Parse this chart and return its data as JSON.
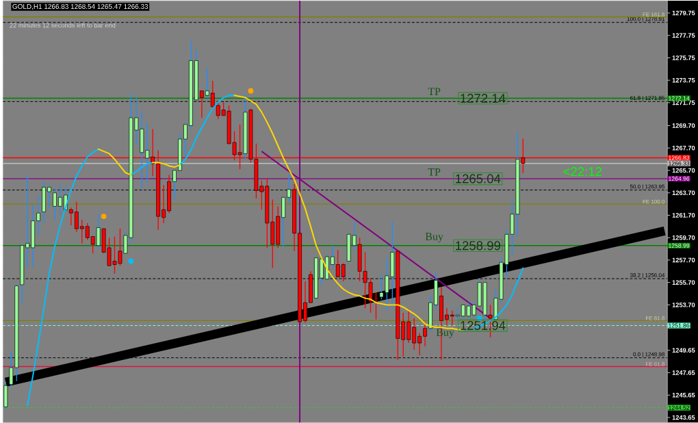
{
  "chart_data": {
    "type": "candlestick",
    "title": "GOLD,H1  1266.83 1268.54 1265.47 1266.33",
    "tick_labels": "y",
    "ylim": [
      1243.2,
      1280.85
    ],
    "yticks": [
      {
        "value": 1279.75,
        "label": "1279.75"
      },
      {
        "value": 1277.75,
        "label": "1277.75"
      },
      {
        "value": 1275.75,
        "label": "1275.75"
      },
      {
        "value": 1273.75,
        "label": "1273.75"
      },
      {
        "value": 1271.75,
        "label": "1271.75"
      },
      {
        "value": 1269.7,
        "label": "1269.70"
      },
      {
        "value": 1267.7,
        "label": "1267.70"
      },
      {
        "value": 1265.7,
        "label": "1265.70"
      },
      {
        "value": 1263.7,
        "label": "1263.70"
      },
      {
        "value": 1261.7,
        "label": "1261.70"
      },
      {
        "value": 1259.7,
        "label": "1259.70"
      },
      {
        "value": 1257.7,
        "label": "1257.70"
      },
      {
        "value": 1255.7,
        "label": "1255.70"
      },
      {
        "value": 1253.7,
        "label": "1253.70"
      },
      {
        "value": 1249.65,
        "label": "1249.65"
      },
      {
        "value": 1247.65,
        "label": "1247.65"
      },
      {
        "value": 1245.65,
        "label": "1245.65"
      },
      {
        "value": 1243.65,
        "label": "1243.65"
      }
    ],
    "categories": [
      null,
      null,
      null,
      null,
      null,
      null,
      null,
      null,
      null,
      null,
      null,
      null,
      null,
      null,
      null,
      null,
      null,
      null,
      null,
      null,
      null,
      null,
      null,
      null,
      null,
      null,
      null,
      null,
      null,
      null,
      null,
      null,
      null,
      null,
      null,
      null,
      null,
      null,
      null,
      null,
      null,
      null,
      null,
      null,
      null,
      null,
      null,
      null,
      null,
      null,
      null,
      null,
      null,
      null,
      null,
      null,
      null,
      null,
      null,
      null,
      null,
      null,
      null,
      null,
      null,
      null,
      null,
      null,
      null,
      null,
      null,
      null,
      null,
      null,
      null,
      null,
      null,
      null,
      null,
      null,
      null,
      null,
      null,
      null,
      null,
      null,
      null,
      null,
      null,
      null,
      null,
      null,
      null,
      null,
      null,
      null,
      null,
      null,
      null,
      null,
      null,
      null,
      null,
      null,
      null,
      null,
      null,
      null,
      null,
      null,
      null,
      null,
      null,
      null,
      null,
      null,
      null,
      null,
      null,
      null,
      null,
      null
    ],
    "ohlc": [
      [
        1244.6,
        1246.8,
        1244.4,
        1246.5
      ],
      [
        1246.6,
        1249.5,
        1246.4,
        1248.1
      ],
      [
        1248.1,
        1255.5,
        1246.9,
        1255.4
      ],
      [
        1255.5,
        1259.0,
        1253.9,
        1259.0
      ],
      [
        1258.8,
        1265.3,
        1257.0,
        1259.2
      ],
      [
        1258.8,
        1262.6,
        1257.1,
        1261.2
      ],
      [
        1261.2,
        1263.5,
        1259.9,
        1261.9
      ],
      [
        1262.0,
        1264.7,
        1261.0,
        1264.2
      ],
      [
        1263.8,
        1264.4,
        1262.3,
        1264.2
      ],
      [
        1262.5,
        1264.1,
        1261.2,
        1263.7
      ],
      [
        1262.5,
        1264.4,
        1261.7,
        1263.3
      ],
      [
        1262.2,
        1264.2,
        1262.0,
        1263.5
      ],
      [
        1262.2,
        1262.4,
        1260.8,
        1261.9
      ],
      [
        1262.0,
        1262.9,
        1260.2,
        1260.5
      ],
      [
        1260.7,
        1261.3,
        1259.2,
        1260.5
      ],
      [
        1260.7,
        1261.0,
        1259.5,
        1259.7
      ],
      [
        1259.8,
        1259.8,
        1258.3,
        1259.1
      ],
      [
        1259.0,
        1261.8,
        1258.7,
        1260.6
      ],
      [
        1260.5,
        1260.5,
        1258.3,
        1258.4
      ],
      [
        1258.8,
        1259.7,
        1257.2,
        1257.2
      ],
      [
        1257.6,
        1259.8,
        1256.5,
        1257.3
      ],
      [
        1258.5,
        1260.5,
        1257.2,
        1257.4
      ],
      [
        1258.3,
        1260.2,
        1258.3,
        1259.9
      ],
      [
        1259.7,
        1272.5,
        1259.2,
        1270.4
      ],
      [
        1269.3,
        1272.2,
        1268.0,
        1270.4
      ],
      [
        1267.3,
        1271.0,
        1264.1,
        1269.4
      ],
      [
        1266.8,
        1270.0,
        1264.6,
        1267.5
      ],
      [
        1266.9,
        1269.4,
        1265.2,
        1266.3
      ],
      [
        1266.3,
        1267.5,
        1260.4,
        1261.6
      ],
      [
        1262.2,
        1264.4,
        1261.0,
        1261.5
      ],
      [
        1264.7,
        1265.3,
        1261.9,
        1262.1
      ],
      [
        1264.7,
        1265.7,
        1263.1,
        1265.7
      ],
      [
        1265.7,
        1269.0,
        1265.7,
        1268.5
      ],
      [
        1268.5,
        1269.8,
        1266.9,
        1269.8
      ],
      [
        1269.7,
        1277.3,
        1269.4,
        1275.5
      ],
      [
        1272.0,
        1276.5,
        1272.0,
        1275.5
      ],
      [
        1272.8,
        1272.8,
        1270.4,
        1272.2
      ],
      [
        1272.4,
        1274.9,
        1272.2,
        1272.8
      ],
      [
        1272.6,
        1273.7,
        1271.1,
        1271.4
      ],
      [
        1271.5,
        1271.8,
        1270.3,
        1270.6
      ],
      [
        1271.1,
        1271.8,
        1270.6,
        1270.6
      ],
      [
        1271.0,
        1271.5,
        1268.0,
        1268.1
      ],
      [
        1268.2,
        1269.2,
        1266.6,
        1267.1
      ],
      [
        1267.3,
        1269.8,
        1265.8,
        1267.1
      ],
      [
        1267.2,
        1272.5,
        1266.7,
        1270.9
      ],
      [
        1271.1,
        1271.2,
        1266.4,
        1266.7
      ],
      [
        1266.7,
        1268.1,
        1263.2,
        1263.9
      ],
      [
        1264.3,
        1264.8,
        1262.2,
        1263.8
      ],
      [
        1264.3,
        1265.0,
        1258.8,
        1261.0
      ],
      [
        1261.1,
        1263.1,
        1257.0,
        1259.1
      ],
      [
        1261.6,
        1262.5,
        1258.8,
        1259.1
      ],
      [
        1261.5,
        1263.3,
        1258.9,
        1263.3
      ],
      [
        1263.3,
        1265.4,
        1262.8,
        1264.0
      ],
      [
        1264.0,
        1264.5,
        1258.5,
        1260.1
      ],
      [
        1260.1,
        1260.1,
        1252.2,
        1252.2
      ],
      [
        1253.9,
        1255.8,
        1252.1,
        1252.3
      ],
      [
        1256.4,
        1256.7,
        1253.9,
        1253.9
      ],
      [
        1254.3,
        1257.9,
        1254.2,
        1257.9
      ],
      [
        1256.1,
        1258.2,
        1255.5,
        1257.8
      ],
      [
        1256.0,
        1258.2,
        1255.9,
        1258.0
      ],
      [
        1257.3,
        1259.0,
        1257.0,
        1258.0
      ],
      [
        1257.3,
        1258.6,
        1256.2,
        1256.2
      ],
      [
        1257.3,
        1257.4,
        1255.8,
        1256.2
      ],
      [
        1257.6,
        1260.0,
        1257.6,
        1260.0
      ],
      [
        1259.0,
        1261.1,
        1258.6,
        1259.9
      ],
      [
        1259.1,
        1259.7,
        1255.8,
        1256.7
      ],
      [
        1256.7,
        1258.4,
        1253.4,
        1255.7
      ],
      [
        1255.7,
        1256.1,
        1253.0,
        1254.0
      ],
      [
        1254.3,
        1254.8,
        1252.4,
        1254.2
      ],
      [
        1254.4,
        1256.4,
        1254.2,
        1254.8
      ],
      [
        1254.8,
        1257.9,
        1253.2,
        1256.3
      ],
      [
        1256.2,
        1261.2,
        1253.4,
        1258.4
      ],
      [
        1258.5,
        1258.5,
        1248.8,
        1250.7
      ],
      [
        1252.2,
        1253.0,
        1249.1,
        1250.6
      ],
      [
        1252.2,
        1253.3,
        1250.3,
        1250.6
      ],
      [
        1251.7,
        1252.5,
        1249.7,
        1250.3
      ],
      [
        1250.9,
        1251.2,
        1249.2,
        1250.3
      ],
      [
        1251.6,
        1252.1,
        1250.0,
        1250.9
      ],
      [
        1251.6,
        1254.5,
        1251.3,
        1253.9
      ],
      [
        1253.7,
        1256.6,
        1253.3,
        1255.9
      ],
      [
        1254.5,
        1255.3,
        1248.8,
        1252.3
      ],
      [
        1252.8,
        1253.4,
        1251.9,
        1252.4
      ],
      [
        1252.8,
        1253.2,
        1251.9,
        1252.7
      ],
      [
        1252.7,
        1253.5,
        1252.2,
        1252.8
      ],
      [
        1252.7,
        1253.7,
        1252.5,
        1253.7
      ],
      [
        1252.7,
        1253.9,
        1252.4,
        1253.6
      ],
      [
        1252.8,
        1254.0,
        1252.6,
        1253.7
      ],
      [
        1253.6,
        1255.9,
        1253.6,
        1255.7
      ],
      [
        1252.8,
        1255.7,
        1252.2,
        1255.7
      ],
      [
        1252.8,
        1253.7,
        1250.8,
        1252.5
      ],
      [
        1252.4,
        1255.1,
        1252.3,
        1254.3
      ],
      [
        1254.2,
        1257.9,
        1253.9,
        1257.5
      ],
      [
        1257.3,
        1260.4,
        1256.2,
        1260.0
      ],
      [
        1260.0,
        1263.1,
        1258.2,
        1261.8
      ],
      [
        1261.8,
        1269.1,
        1259.8,
        1266.7
      ],
      [
        1266.83,
        1268.54,
        1265.47,
        1266.33
      ],
      null,
      null,
      null,
      null,
      null,
      null,
      null,
      null,
      null,
      null,
      null,
      null,
      null,
      null,
      null,
      null,
      null,
      null,
      null,
      null,
      null,
      null,
      null,
      null,
      null,
      null
    ],
    "series": [
      {
        "type": "line",
        "color": "#00bfff",
        "values": [
          null,
          null,
          null,
          null,
          1244.7,
          1247.4,
          1250.3,
          1253.4,
          1256.5,
          1258.9,
          1260.8,
          1262.4,
          1263.9,
          1265.2,
          1266.1,
          1266.9,
          1267.3,
          1267.6,
          null,
          null,
          null,
          null,
          null,
          1265.3,
          1265.6,
          1266.0,
          1266.3,
          1266.4,
          null,
          null,
          null,
          null,
          1266.2,
          1266.7,
          1267.5,
          1268.6,
          1269.5,
          1270.4,
          1271.2,
          1271.8,
          1272.2,
          1272.4,
          1272.4,
          null,
          null,
          null,
          null,
          null,
          null,
          null,
          null,
          null,
          null,
          null,
          null,
          null,
          null,
          null,
          null,
          null,
          null,
          null,
          null,
          null,
          null,
          null,
          null,
          null,
          null,
          null,
          null,
          null,
          null,
          null,
          null,
          null,
          null,
          null,
          null,
          null,
          null,
          null,
          null,
          null,
          null,
          null,
          1251.6,
          1251.8,
          1252.0,
          1252.3,
          1252.6,
          1253.1,
          1253.7,
          1254.6,
          1255.8,
          1257.0,
          null,
          null,
          null,
          null,
          null,
          null,
          null,
          null,
          null,
          null,
          null,
          null,
          null,
          null,
          null,
          null,
          null,
          null,
          null,
          null,
          null,
          null,
          null,
          null,
          null,
          null
        ]
      },
      {
        "type": "line",
        "color": "#ffd700",
        "values": [
          null,
          null,
          null,
          null,
          null,
          null,
          null,
          null,
          null,
          null,
          null,
          null,
          null,
          null,
          null,
          null,
          null,
          1267.6,
          1267.4,
          1267.2,
          1266.7,
          1266.1,
          1265.5,
          1265.3,
          null,
          null,
          null,
          1266.4,
          1266.4,
          1266.3,
          1266.1,
          1266.0,
          1266.2,
          null,
          null,
          null,
          null,
          null,
          null,
          null,
          null,
          null,
          1272.4,
          1272.3,
          1272.2,
          1271.9,
          1271.6,
          1270.9,
          1270.0,
          1269.0,
          1267.9,
          1266.8,
          1265.8,
          1264.9,
          1263.6,
          1262.3,
          1260.7,
          1259.0,
          1257.9,
          1256.9,
          1256.2,
          1255.6,
          1255.1,
          1254.8,
          1254.6,
          1254.5,
          1254.3,
          1254.2,
          1253.9,
          1253.8,
          1253.7,
          1253.7,
          1253.7,
          1253.5,
          1253.2,
          1252.9,
          1252.5,
          1252.0,
          1251.8,
          1251.7,
          1251.7,
          1251.6,
          1251.6,
          1251.5,
          1251.5,
          null,
          null,
          null,
          null,
          null,
          null,
          null,
          null,
          null,
          null,
          null,
          null,
          null,
          null,
          null,
          null,
          null,
          null,
          null,
          null,
          null,
          null,
          null,
          null,
          null,
          null,
          null,
          null,
          null,
          null,
          null,
          null,
          null,
          null,
          null,
          null,
          null
        ]
      },
      {
        "type": "line",
        "color": "#000000",
        "values": [
          1246.8,
          null,
          null,
          null,
          null,
          null,
          null,
          null,
          null,
          null,
          null,
          null,
          null,
          null,
          null,
          null,
          null,
          null,
          null,
          null,
          null,
          null,
          null,
          null,
          null,
          null,
          null,
          null,
          null,
          null,
          null,
          null,
          null,
          null,
          null,
          null,
          null,
          null,
          null,
          null,
          null,
          null,
          null,
          null,
          null,
          null,
          null,
          null,
          null,
          null,
          null,
          null,
          null,
          null,
          null,
          null,
          null,
          null,
          null,
          null,
          null,
          null,
          null,
          null,
          null,
          null,
          null,
          null,
          null,
          null,
          null,
          null,
          null,
          null,
          null,
          null,
          null,
          null,
          null,
          null,
          null,
          null,
          null,
          null,
          null,
          null,
          null,
          null,
          null,
          null,
          null,
          null,
          null,
          null,
          null,
          null,
          null,
          null,
          null,
          null,
          null,
          null,
          null,
          null,
          null,
          null,
          null,
          null,
          null,
          null,
          null,
          null,
          null,
          null,
          null,
          null,
          null,
          null,
          null,
          null,
          null,
          1260.3
        ]
      },
      {
        "type": "line",
        "color": "#800080",
        "values": [
          null,
          null,
          null,
          null,
          null,
          null,
          null,
          null,
          null,
          null,
          null,
          null,
          null,
          null,
          null,
          null,
          null,
          null,
          null,
          null,
          null,
          null,
          null,
          null,
          null,
          null,
          null,
          null,
          null,
          null,
          null,
          null,
          null,
          null,
          null,
          null,
          null,
          null,
          null,
          null,
          null,
          null,
          null,
          null,
          null,
          null,
          null,
          1267.4,
          null,
          null,
          null,
          null,
          null,
          null,
          null,
          null,
          null,
          null,
          null,
          null,
          null,
          null,
          null,
          null,
          null,
          null,
          null,
          null,
          null,
          null,
          null,
          null,
          null,
          null,
          null,
          null,
          null,
          null,
          null,
          null,
          null,
          null,
          null,
          null,
          null,
          null,
          null,
          null,
          null,
          1252.5,
          null,
          null,
          null,
          null,
          null,
          null,
          null,
          null,
          null,
          null,
          null,
          null,
          null,
          null,
          null,
          null,
          null,
          null,
          null,
          null,
          null,
          null,
          null,
          null,
          null,
          null,
          null,
          null,
          null,
          null,
          null,
          null
        ]
      },
      {
        "type": "scatter",
        "color": "#ffa500",
        "values": [
          null,
          null,
          null,
          null,
          null,
          null,
          null,
          null,
          null,
          null,
          null,
          null,
          null,
          null,
          null,
          null,
          null,
          null,
          1261.6,
          null,
          null,
          null,
          null,
          null,
          null,
          null,
          null,
          null,
          null,
          null,
          null,
          null,
          null,
          null,
          null,
          null,
          null,
          null,
          null,
          null,
          null,
          null,
          null,
          null,
          null,
          1272.8,
          null,
          null,
          null,
          null,
          null,
          null,
          null,
          null,
          null,
          null,
          null,
          null,
          null,
          null,
          null,
          null,
          null,
          null,
          null,
          null,
          null,
          null,
          null,
          null,
          null,
          null,
          null,
          null,
          null,
          null,
          null,
          null,
          null,
          null,
          null,
          null,
          null,
          null,
          null,
          null,
          null,
          null,
          null,
          null,
          null,
          null,
          null,
          null,
          null,
          null,
          null,
          null,
          null,
          null,
          null,
          null,
          null,
          null,
          null,
          null,
          null,
          null,
          null,
          null,
          null,
          null,
          null,
          null,
          null,
          null,
          null,
          null,
          null,
          null,
          null,
          null
        ]
      },
      {
        "type": "scatter",
        "color": "#00bfff",
        "values": [
          null,
          null,
          null,
          null,
          null,
          null,
          null,
          null,
          null,
          null,
          null,
          null,
          null,
          null,
          null,
          null,
          null,
          null,
          null,
          null,
          null,
          null,
          null,
          1257.6,
          null,
          null,
          null,
          null,
          null,
          null,
          null,
          null,
          null,
          null,
          null,
          null,
          null,
          null,
          null,
          null,
          null,
          null,
          null,
          null,
          null,
          null,
          null,
          null,
          null,
          null,
          null,
          null,
          null,
          null,
          null,
          null,
          null,
          null,
          null,
          null,
          null,
          null,
          null,
          null,
          null,
          null,
          null,
          null,
          null,
          null,
          null,
          null,
          null,
          null,
          null,
          null,
          null,
          null,
          null,
          null,
          null,
          null,
          null,
          null,
          null,
          null,
          null,
          1252.5,
          null,
          null,
          null,
          null,
          null,
          null,
          null,
          null,
          null,
          null,
          null,
          null,
          null,
          null,
          null,
          null,
          null,
          null,
          null,
          null,
          null,
          null,
          null,
          null,
          null,
          null,
          null,
          null,
          null,
          null,
          null,
          null,
          null,
          null
        ]
      }
    ],
    "ref_lines": [
      {
        "axis": "y",
        "value": 1272.14,
        "label": "1272.14",
        "color": "#008000",
        "line_style": "solid"
      },
      {
        "axis": "y",
        "value": 1266.83,
        "label": "1266.83",
        "color": "#ff0000",
        "line_style": "solid"
      },
      {
        "axis": "y",
        "value": 1266.33,
        "label": "1266.33",
        "color": "#c0c0c0",
        "line_style": "solid"
      },
      {
        "axis": "y",
        "value": 1264.96,
        "label": "1264.96",
        "color": "#800080",
        "line_style": "solid"
      },
      {
        "axis": "y",
        "value": 1258.99,
        "label": "1258.99",
        "color": "#008000",
        "line_style": "solid"
      },
      {
        "axis": "y",
        "value": 1251.86,
        "label": "1251.86",
        "color": "#7fffd4",
        "line_style": "dashed"
      },
      {
        "axis": "y",
        "value": 1244.52,
        "label": "1244.52",
        "color": "#32cd32",
        "line_style": "dashed"
      },
      {
        "axis": "y",
        "value": 1278.91,
        "label": "100.0 | 1278.91",
        "color": "#000000",
        "line_style": "dashed"
      },
      {
        "axis": "y",
        "value": 1271.85,
        "label": "61.8 | 1271.85",
        "color": "#000000",
        "line_style": "dashed"
      },
      {
        "axis": "y",
        "value": 1263.95,
        "label": "50.0 | 1263.95",
        "color": "#000000",
        "line_style": "dashed"
      },
      {
        "axis": "y",
        "value": 1256.04,
        "label": "38.2 | 1256.04",
        "color": "#000000",
        "line_style": "dashed"
      },
      {
        "axis": "y",
        "value": 1248.98,
        "label": "0.0 | 1248.98",
        "color": "#000000",
        "line_style": "dashed"
      },
      {
        "axis": "y",
        "value": 1279.4,
        "label": "FE 161.8",
        "color": "#808000",
        "line_style": "solid"
      },
      {
        "axis": "y",
        "value": 1262.7,
        "label": "FE 100.0",
        "color": "#808000",
        "line_style": "solid"
      },
      {
        "axis": "y",
        "value": 1252.3,
        "label": "FE 61.8",
        "color": "#808000",
        "line_style": "solid"
      },
      {
        "axis": "y",
        "value": 1248.2,
        "label": "FE 61.8",
        "color": "#dc143c",
        "line_style": "solid"
      }
    ],
    "annotations": [
      {
        "text": "TP",
        "y": 1272.14
      },
      {
        "text": "1272.14",
        "y": 1272.14
      },
      {
        "text": "TP",
        "y": 1264.96
      },
      {
        "text": "1265.04",
        "y": 1264.96
      },
      {
        "text": "Buy",
        "y": 1258.99
      },
      {
        "text": "1258.99",
        "y": 1258.99
      },
      {
        "text": "Buy",
        "y": 1251.86
      },
      {
        "text": "1251.94",
        "y": 1251.86
      },
      "<22:12",
      "22 minutes 12 seconds left to bar end"
    ]
  }
}
